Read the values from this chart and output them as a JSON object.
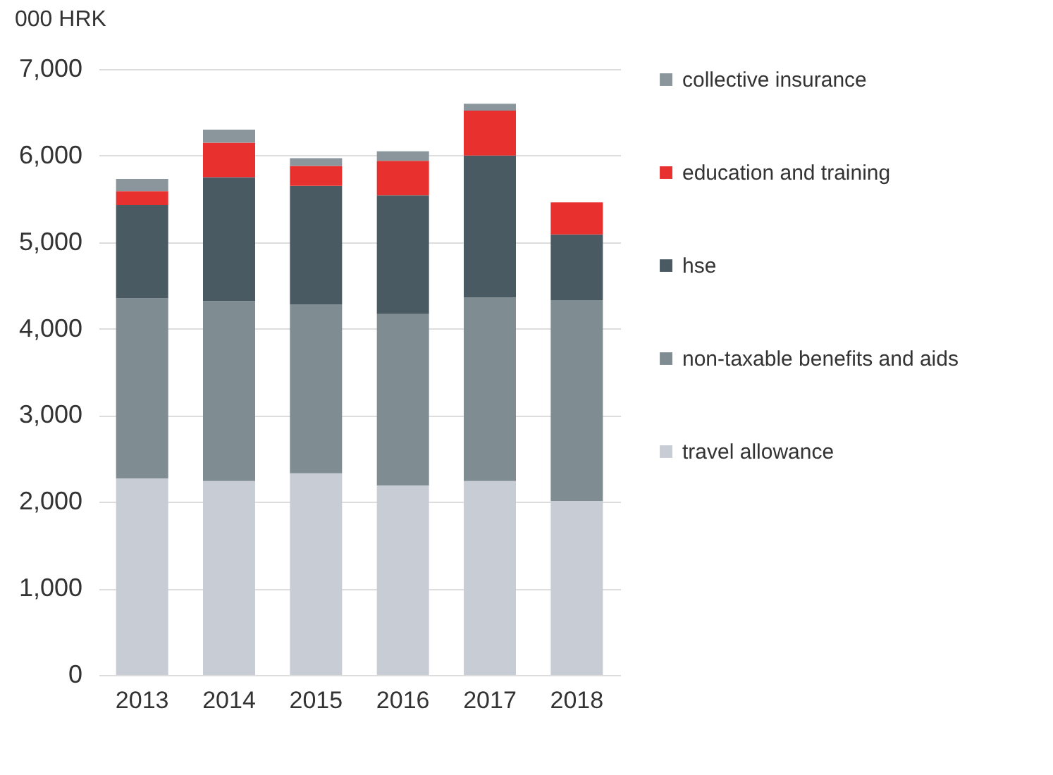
{
  "chart_data": {
    "type": "bar",
    "stacked": true,
    "ylabel": "000 HRK",
    "categories": [
      "2013",
      "2014",
      "2015",
      "2016",
      "2017",
      "2018"
    ],
    "series": [
      {
        "name": "travel allowance",
        "color": "#c8ccd4",
        "values": [
          2270,
          2240,
          2330,
          2190,
          2240,
          2010
        ]
      },
      {
        "name": "non-taxable benefits and aids",
        "color": "#7f8c92",
        "values": [
          2080,
          2080,
          1950,
          1980,
          2120,
          2320
        ]
      },
      {
        "name": "hse",
        "color": "#4a5a62",
        "values": [
          1080,
          1430,
          1370,
          1370,
          1640,
          760
        ]
      },
      {
        "name": "education and training",
        "color": "#e8302f",
        "values": [
          160,
          400,
          230,
          400,
          520,
          370
        ]
      },
      {
        "name": "collective insurance",
        "color": "#8a969c",
        "values": [
          140,
          150,
          90,
          110,
          80,
          0
        ]
      }
    ],
    "ylim": [
      0,
      7000
    ],
    "yticks": [
      0,
      {
        "value": 1000,
        "label": "1,000"
      },
      {
        "value": 2000,
        "label": "2,000"
      },
      {
        "value": 3000,
        "label": "3,000"
      },
      {
        "value": 4000,
        "label": "4,000"
      },
      {
        "value": 5000,
        "label": "5,000"
      },
      {
        "value": 6000,
        "label": "6,000"
      },
      {
        "value": 7000,
        "label": "7,000"
      }
    ],
    "grid": "y",
    "legend": "right"
  }
}
